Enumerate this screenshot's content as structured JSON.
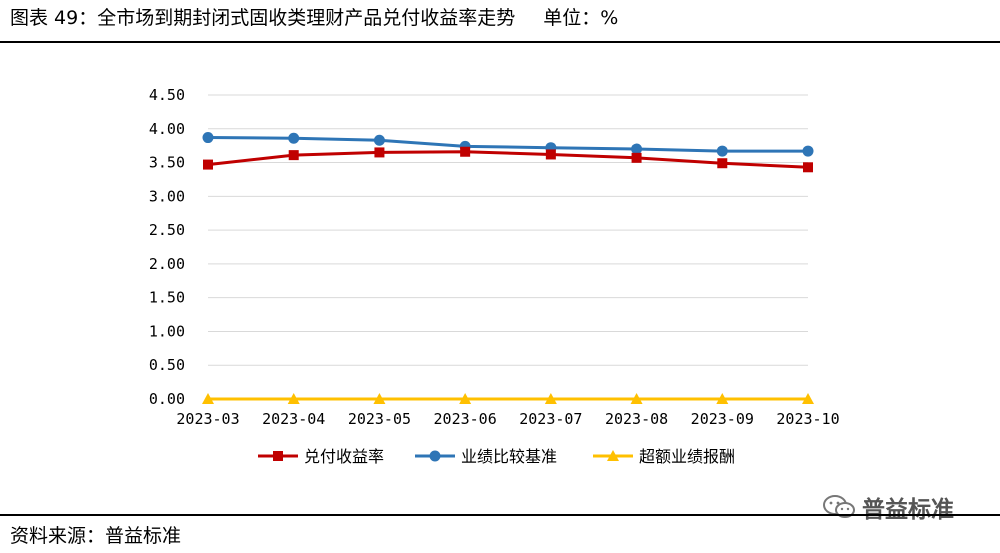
{
  "header": {
    "title": "图表 49：全市场到期封闭式固收类理财产品兑付收益率走势",
    "unit": "单位：%"
  },
  "source": "资料来源：普益标准",
  "watermark": "普益标准",
  "chart_data": {
    "type": "line",
    "title": "",
    "xlabel": "",
    "ylabel": "",
    "categories": [
      "2023-03",
      "2023-04",
      "2023-05",
      "2023-06",
      "2023-07",
      "2023-08",
      "2023-09",
      "2023-10"
    ],
    "ylim": [
      0,
      4.5
    ],
    "yticks": [
      "0.00",
      "0.50",
      "1.00",
      "1.50",
      "2.00",
      "2.50",
      "3.00",
      "3.50",
      "4.00",
      "4.50"
    ],
    "grid": "horizontal",
    "legend_position": "bottom",
    "series": [
      {
        "name": "兑付收益率",
        "color": "#C00000",
        "marker": "square",
        "values": [
          3.47,
          3.61,
          3.65,
          3.66,
          3.62,
          3.57,
          3.49,
          3.43
        ]
      },
      {
        "name": "业绩比较基准",
        "color": "#2E75B6",
        "marker": "circle",
        "values": [
          3.87,
          3.86,
          3.83,
          3.74,
          3.72,
          3.7,
          3.67,
          3.67
        ]
      },
      {
        "name": "超额业绩报酬",
        "color": "#FFC000",
        "marker": "triangle",
        "values": [
          0,
          0,
          0,
          0,
          0,
          0,
          0,
          0
        ]
      }
    ]
  }
}
